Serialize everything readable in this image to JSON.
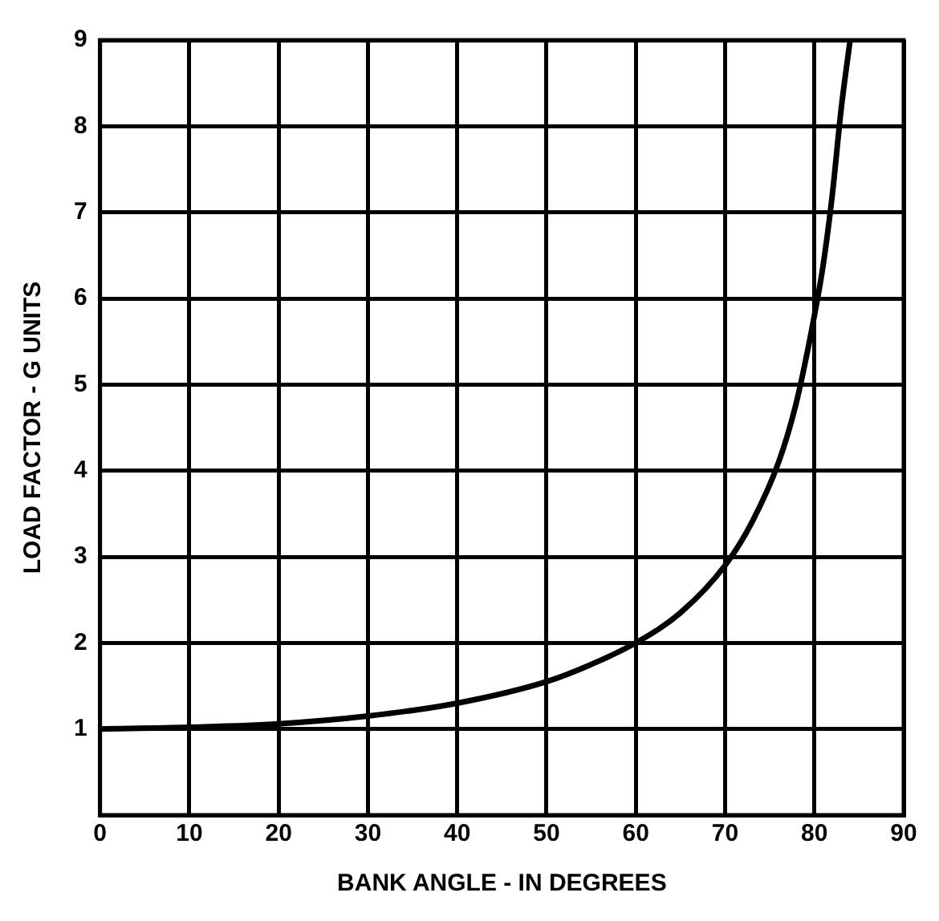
{
  "chart_data": {
    "type": "line",
    "xlabel": "BANK ANGLE - IN DEGREES",
    "ylabel": "LOAD FACTOR - G UNITS",
    "x": [
      0,
      10,
      20,
      30,
      40,
      50,
      55,
      60,
      65,
      70,
      73,
      76,
      78,
      80,
      81,
      82,
      83,
      84
    ],
    "series": [
      {
        "color": "#000000",
        "values": [
          1,
          1.02,
          1.06,
          1.15,
          1.3,
          1.55,
          1.75,
          2,
          2.35,
          2.9,
          3.4,
          4.1,
          4.8,
          5.8,
          6.4,
          7.2,
          8.2,
          9
        ]
      }
    ],
    "xlim": [
      0,
      90
    ],
    "xticks": [
      0,
      10,
      20,
      30,
      40,
      50,
      60,
      70,
      80,
      90
    ],
    "ylim": [
      0,
      9
    ],
    "yticks": [
      {
        "value": 0,
        "label": null
      },
      1,
      2,
      3,
      4,
      5,
      6,
      7,
      8,
      9
    ],
    "grid": true,
    "legend": false,
    "marker": "none",
    "line_style": "solid"
  }
}
